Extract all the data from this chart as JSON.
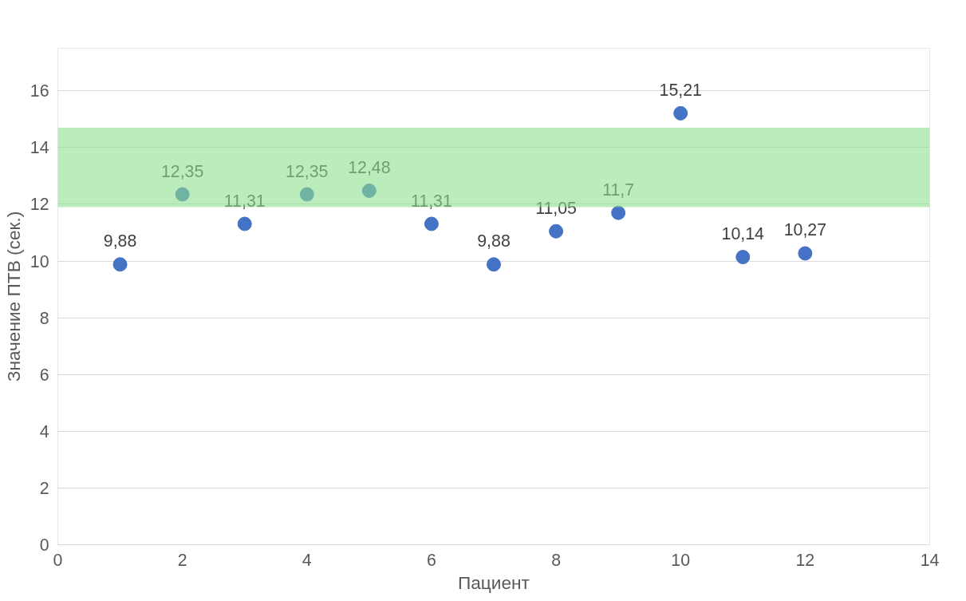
{
  "chart_data": {
    "type": "scatter",
    "xlabel": "Пациент",
    "ylabel": "Значение ПТВ (сек.)",
    "x": [
      1,
      2,
      3,
      4,
      5,
      6,
      7,
      8,
      9,
      10,
      11,
      12
    ],
    "values": [
      9.88,
      12.35,
      11.31,
      12.35,
      12.48,
      11.31,
      9.88,
      11.05,
      11.7,
      15.21,
      10.14,
      10.27
    ],
    "value_labels": [
      "9,88",
      "12,35",
      "11,31",
      "12,35",
      "12,48",
      "11,31",
      "9,88",
      "11,05",
      "11,7",
      "15,21",
      "10,14",
      "10,27"
    ],
    "color": "#4472c4",
    "marker": "circle",
    "xlim": [
      0,
      14
    ],
    "xticks": [
      0,
      2,
      4,
      6,
      8,
      10,
      12,
      14
    ],
    "ylim": [
      0,
      17.5
    ],
    "yticks": [
      0,
      2,
      4,
      6,
      8,
      10,
      12,
      14,
      16
    ],
    "grid": "y",
    "bands": [
      {
        "axis": "y",
        "from": 11.9,
        "to": 14.7,
        "label": null,
        "color": "#8ee08e"
      }
    ]
  }
}
